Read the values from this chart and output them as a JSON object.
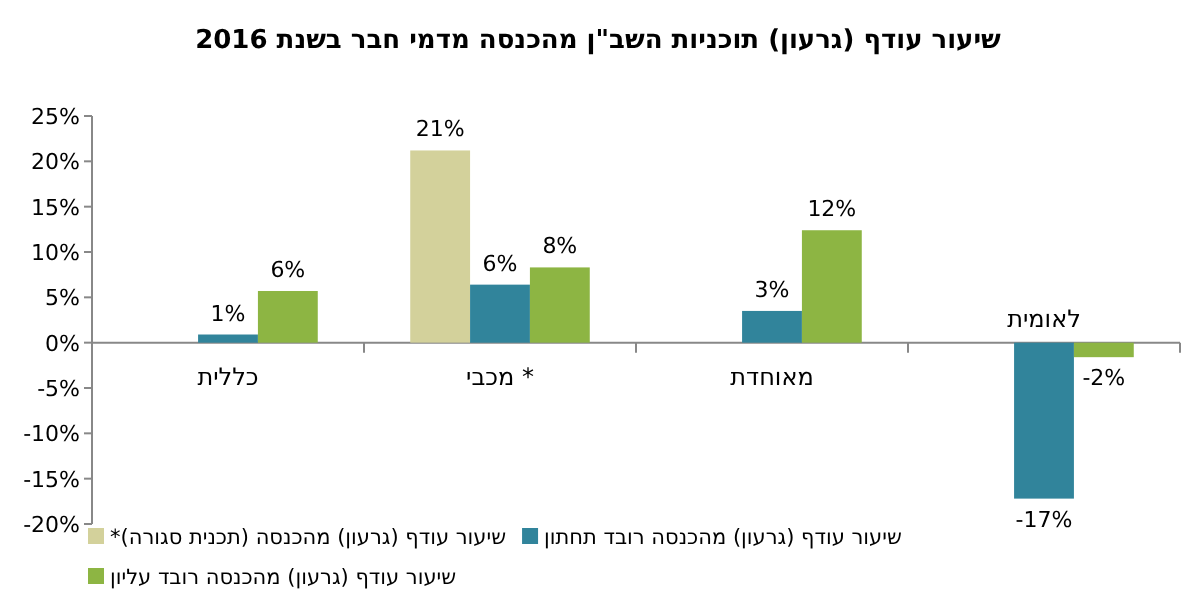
{
  "chart_data": {
    "type": "bar",
    "title": "שיעור עודף (גרעון) תוכניות השב\"ן מהכנסה מדמי חבר בשנת 2016",
    "categories": [
      "כללית",
      "מכבי *",
      "מאוחדת",
      "לאומית"
    ],
    "series": [
      {
        "name": "שיעור עודף (גרעון) מהכנסה (תכנית סגורה)*",
        "color": "#d3d19b",
        "values": [
          null,
          21.2,
          null,
          null
        ],
        "value_labels": [
          null,
          "21%",
          null,
          null
        ]
      },
      {
        "name": "שיעור עודף (גרעון) מהכנסה רובד תחתון",
        "color": "#31849b",
        "values": [
          0.9,
          6.4,
          3.5,
          -17.2
        ],
        "value_labels": [
          "1%",
          "6%",
          "3%",
          "-17%"
        ]
      },
      {
        "name": "שיעור עודף (גרעון) מהכנסה רובד עליון",
        "color": "#8db543",
        "values": [
          5.7,
          8.3,
          12.4,
          -1.6
        ],
        "value_labels": [
          "6%",
          "8%",
          "12%",
          "-2%"
        ]
      }
    ],
    "ylim": [
      -20,
      25
    ],
    "yticks": [
      {
        "value": -20,
        "label": "-20%"
      },
      {
        "value": -15,
        "label": "-15%"
      },
      {
        "value": -10,
        "label": "-10%"
      },
      {
        "value": -5,
        "label": "-5%"
      },
      {
        "value": 0,
        "label": "0%"
      },
      {
        "value": 5,
        "label": "5%"
      },
      {
        "value": 10,
        "label": "10%"
      },
      {
        "value": 15,
        "label": "15%"
      },
      {
        "value": 20,
        "label": "20%"
      },
      {
        "value": 25,
        "label": "25%"
      }
    ],
    "grid": false,
    "legend": "bottom"
  }
}
